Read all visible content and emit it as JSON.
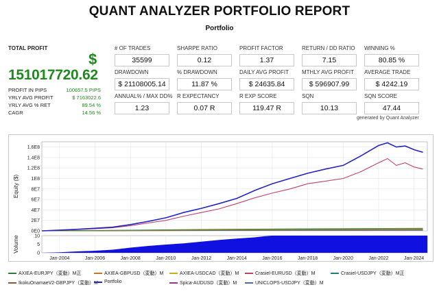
{
  "header": {
    "title": "QUANT ANALYZER PORTFOLIO REPORT",
    "subtitle": "Portfolio"
  },
  "total_profit": {
    "label": "TOTAL PROFIT",
    "currency": "$",
    "value": "151017720.62",
    "rows": [
      {
        "label": "PROFIT IN PIPS",
        "value": "100657.5 PIPS"
      },
      {
        "label": "YRLY AVG PROFIT",
        "value": "$ 7163022.6"
      },
      {
        "label": "YRLY AVG % RET",
        "value": "89.54 %"
      },
      {
        "label": "CAGR",
        "value": "14.56 %"
      }
    ]
  },
  "metrics": [
    [
      {
        "label": "# OF TRADES",
        "value": "35599"
      },
      {
        "label": "SHARPE RATIO",
        "value": "0.12"
      },
      {
        "label": "PROFIT FACTOR",
        "value": "1.37"
      },
      {
        "label": "RETURN / DD RATIO",
        "value": "7.15"
      },
      {
        "label": "WINNING %",
        "value": "80.85 %"
      }
    ],
    [
      {
        "label": "DRAWDOWN",
        "value": "$ 21108005.14"
      },
      {
        "label": "% DRAWDOWN",
        "value": "11.87 %"
      },
      {
        "label": "DAILY AVG PROFIT",
        "value": "$ 24635.84"
      },
      {
        "label": "MTHLY AVG PROFIT",
        "value": "$ 596907.99"
      },
      {
        "label": "AVERAGE TRADE",
        "value": "$ 4242.19"
      }
    ],
    [
      {
        "label": "ANNUAL% / MAX DD%",
        "value": "1.23"
      },
      {
        "label": "R EXPECTANCY",
        "value": "0.07 R"
      },
      {
        "label": "R EXP SCORE",
        "value": "119.47 R"
      },
      {
        "label": "SQN",
        "value": "10.13"
      },
      {
        "label": "SQN SCORE",
        "value": "47.44"
      }
    ]
  ],
  "generated_by": "generated by Quant Analyzer",
  "chart_data": {
    "type": "line",
    "ylabel": "Equity ($)",
    "volume_label": "Volume",
    "y_ticks": [
      "1.6E8",
      "1.4E8",
      "1.2E8",
      "1E8",
      "8E7",
      "6E7",
      "4E7",
      "2E7",
      "0E0"
    ],
    "ylim": [
      0,
      170000000
    ],
    "volume_ticks": [
      "10",
      "5",
      "0"
    ],
    "volume_ylim": [
      0,
      10
    ],
    "x_ticks": [
      "Jan-2004",
      "Jan-2006",
      "Jan-2008",
      "Jan-2010",
      "Jan-2012",
      "Jan-2014",
      "Jan-2016",
      "Jan-2018",
      "Jan-2020",
      "Jan-2022",
      "Jan-2024"
    ],
    "x_range": [
      2003.0,
      2024.75
    ],
    "grid": true,
    "series": [
      {
        "name": "Portfolio",
        "color": "#2323c8",
        "x": [
          2003.0,
          2004,
          2005,
          2006,
          2007,
          2008,
          2009,
          2010,
          2011,
          2012,
          2013,
          2014,
          2015,
          2016,
          2017,
          2018,
          2019,
          2020,
          2021,
          2022,
          2022.5,
          2023,
          2023.5,
          2024,
          2024.5
        ],
        "y": [
          0,
          1500000,
          3000000,
          5000000,
          7000000,
          12000000,
          18000000,
          25000000,
          35000000,
          43000000,
          52000000,
          62000000,
          77000000,
          90000000,
          100000000,
          110000000,
          118000000,
          125000000,
          143000000,
          163000000,
          168000000,
          160000000,
          162000000,
          155000000,
          150000000
        ]
      },
      {
        "name": "Crasiel-EURUSD（変動）M",
        "color": "#c0406a",
        "x": [
          2003.0,
          2004,
          2005,
          2006,
          2007,
          2008,
          2009,
          2010,
          2011,
          2012,
          2013,
          2014,
          2015,
          2016,
          2017,
          2018,
          2019,
          2020,
          2021,
          2022,
          2022.5,
          2023,
          2023.5,
          2024,
          2024.5
        ],
        "y": [
          0,
          1200000,
          2500000,
          4000000,
          6000000,
          10000000,
          15000000,
          20000000,
          28000000,
          35000000,
          42000000,
          52000000,
          63000000,
          72000000,
          80000000,
          90000000,
          95000000,
          100000000,
          113000000,
          130000000,
          138000000,
          125000000,
          130000000,
          122000000,
          118000000
        ]
      },
      {
        "name": "AXIEA-EURJPY（変動）M正",
        "color": "#2e7d32",
        "x": [
          2003.0,
          2008,
          2013,
          2018,
          2024.5
        ],
        "y": [
          0,
          1500000,
          3000000,
          4000000,
          5000000
        ]
      },
      {
        "name": "AXIEA-GBPUSD（変動）M",
        "color": "#d07020",
        "x": [
          2003.0,
          2008,
          2013,
          2018,
          2024.5
        ],
        "y": [
          0,
          1000000,
          2500000,
          3500000,
          4000000
        ]
      },
      {
        "name": "AXIEA-USDCAD（変動）M",
        "color": "#c8b020",
        "x": [
          2003.0,
          2008,
          2013,
          2018,
          2024.5
        ],
        "y": [
          0,
          800000,
          2000000,
          3000000,
          3500000
        ]
      },
      {
        "name": "Crasiel-USDJPY（変動）M正",
        "color": "#208080",
        "x": [
          2003.0,
          2008,
          2013,
          2018,
          2024.5
        ],
        "y": [
          0,
          600000,
          1500000,
          2000000,
          2500000
        ]
      },
      {
        "name": "IkokuOnamaeV2-GBPJPY（変動）M",
        "color": "#8a5a2a",
        "x": [
          2003.0,
          2008,
          2013,
          2018,
          2024.5
        ],
        "y": [
          0,
          500000,
          1000000,
          1500000,
          2000000
        ]
      },
      {
        "name": "Spica-AUDUSD（変動）M",
        "color": "#a03090",
        "x": [
          2003.0,
          2008,
          2013,
          2018,
          2024.5
        ],
        "y": [
          0,
          400000,
          900000,
          1200000,
          1500000
        ]
      },
      {
        "name": "UNICLOPS-USDJPY（変動）M",
        "color": "#4a6aa0",
        "x": [
          2003.0,
          2008,
          2013,
          2018,
          2024.5
        ],
        "y": [
          0,
          300000,
          700000,
          900000,
          1000000
        ]
      }
    ],
    "volume": {
      "color": "#1010e0",
      "x": [
        2003.0,
        2004,
        2005,
        2006,
        2007,
        2008,
        2009,
        2010,
        2011,
        2012,
        2013,
        2014,
        2015,
        2015.5,
        2016,
        2020,
        2024,
        2024.75
      ],
      "y": [
        0,
        0.3,
        0.8,
        1.2,
        1.8,
        3,
        4,
        4.8,
        5.5,
        6.5,
        7.5,
        8.3,
        9,
        9.6,
        10,
        10,
        10,
        10
      ]
    },
    "legend": [
      "AXIEA-EURJPY（変動）M正",
      "AXIEA-GBPUSD（変動）M",
      "AXIEA-USDCAD（変動）M",
      "Crasiel-EURUSD（変動）M",
      "Crasiel-USDJPY（変動）M正",
      "IkokuOnamaeV2-GBPJPY（変動）M",
      "Portfolio",
      "Spica-AUDUSD（変動）M",
      "UNICLOPS-USDJPY（変動）M"
    ]
  }
}
